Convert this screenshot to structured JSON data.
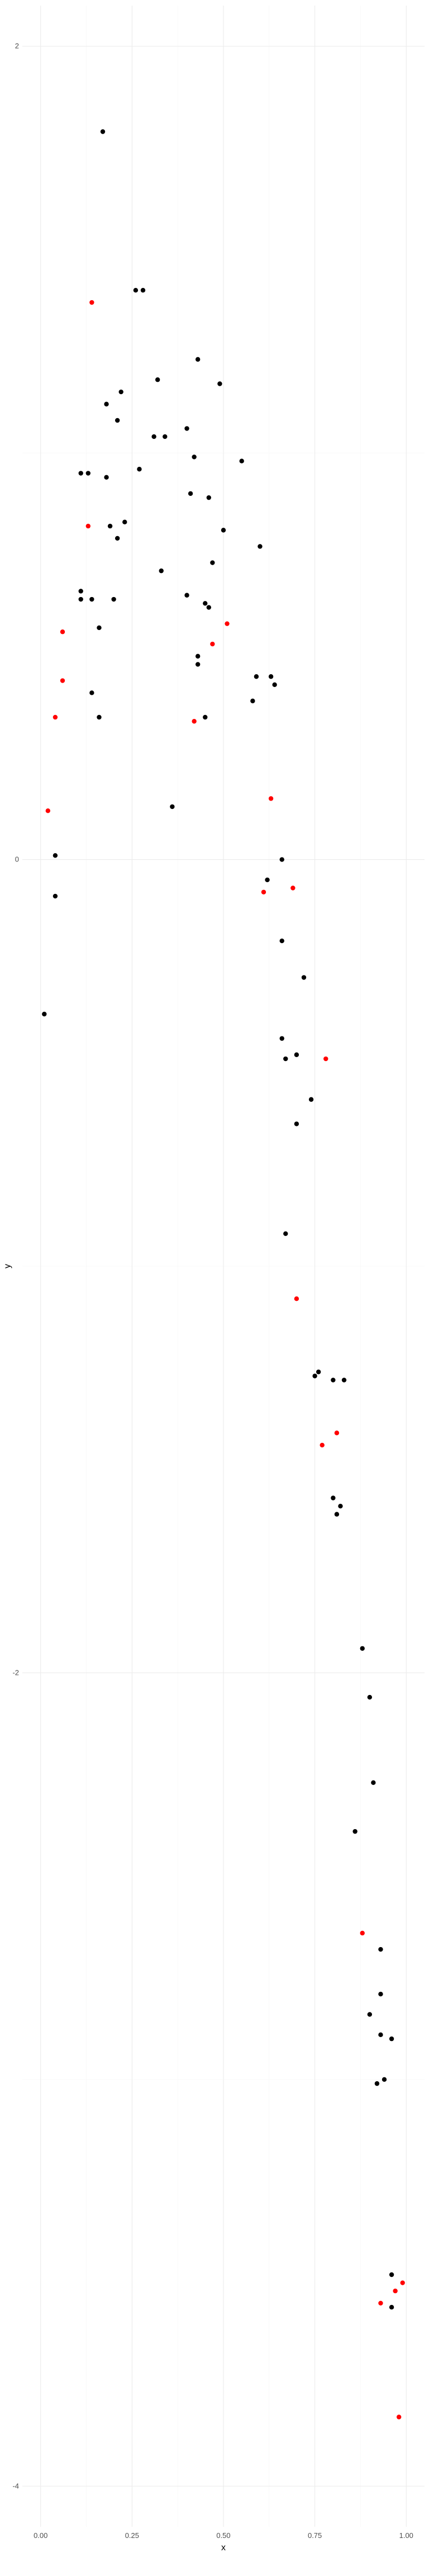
{
  "chart_data": {
    "type": "scatter",
    "xlabel": "x",
    "ylabel": "y",
    "xlim": [
      -0.05,
      1.05
    ],
    "ylim": [
      -4.1,
      2.1
    ],
    "x_ticks": [
      0,
      0.25,
      0.5,
      0.75,
      1
    ],
    "x_tick_labels": [
      "0.00",
      "0.25",
      "0.50",
      "0.75",
      "1.00"
    ],
    "y_ticks": [
      -4,
      -2,
      0,
      2
    ],
    "y_tick_labels": [
      "-4",
      "-2",
      "0",
      "2"
    ],
    "grid": true,
    "colors": {
      "black": "#000000",
      "red": "#ff0000"
    },
    "points": [
      {
        "x": 0.17,
        "y": 1.79,
        "c": "black"
      },
      {
        "x": 0.14,
        "y": 1.37,
        "c": "red"
      },
      {
        "x": 0.26,
        "y": 1.4,
        "c": "black"
      },
      {
        "x": 0.28,
        "y": 1.4,
        "c": "black"
      },
      {
        "x": 0.43,
        "y": 1.23,
        "c": "black"
      },
      {
        "x": 0.32,
        "y": 1.18,
        "c": "black"
      },
      {
        "x": 0.49,
        "y": 1.17,
        "c": "black"
      },
      {
        "x": 0.22,
        "y": 1.15,
        "c": "black"
      },
      {
        "x": 0.18,
        "y": 1.12,
        "c": "black"
      },
      {
        "x": 0.21,
        "y": 1.08,
        "c": "black"
      },
      {
        "x": 0.4,
        "y": 1.06,
        "c": "black"
      },
      {
        "x": 0.31,
        "y": 1.04,
        "c": "black"
      },
      {
        "x": 0.34,
        "y": 1.04,
        "c": "black"
      },
      {
        "x": 0.42,
        "y": 0.99,
        "c": "black"
      },
      {
        "x": 0.55,
        "y": 0.98,
        "c": "black"
      },
      {
        "x": 0.11,
        "y": 0.95,
        "c": "black"
      },
      {
        "x": 0.13,
        "y": 0.95,
        "c": "black"
      },
      {
        "x": 0.27,
        "y": 0.96,
        "c": "black"
      },
      {
        "x": 0.18,
        "y": 0.94,
        "c": "black"
      },
      {
        "x": 0.41,
        "y": 0.9,
        "c": "black"
      },
      {
        "x": 0.46,
        "y": 0.89,
        "c": "black"
      },
      {
        "x": 0.23,
        "y": 0.83,
        "c": "black"
      },
      {
        "x": 0.13,
        "y": 0.82,
        "c": "red"
      },
      {
        "x": 0.19,
        "y": 0.82,
        "c": "black"
      },
      {
        "x": 0.5,
        "y": 0.81,
        "c": "black"
      },
      {
        "x": 0.21,
        "y": 0.79,
        "c": "black"
      },
      {
        "x": 0.6,
        "y": 0.77,
        "c": "black"
      },
      {
        "x": 0.47,
        "y": 0.73,
        "c": "black"
      },
      {
        "x": 0.33,
        "y": 0.71,
        "c": "black"
      },
      {
        "x": 0.11,
        "y": 0.66,
        "c": "black"
      },
      {
        "x": 0.11,
        "y": 0.64,
        "c": "black"
      },
      {
        "x": 0.14,
        "y": 0.64,
        "c": "black"
      },
      {
        "x": 0.2,
        "y": 0.64,
        "c": "black"
      },
      {
        "x": 0.4,
        "y": 0.65,
        "c": "black"
      },
      {
        "x": 0.45,
        "y": 0.63,
        "c": "black"
      },
      {
        "x": 0.46,
        "y": 0.62,
        "c": "black"
      },
      {
        "x": 0.51,
        "y": 0.58,
        "c": "red"
      },
      {
        "x": 0.16,
        "y": 0.57,
        "c": "black"
      },
      {
        "x": 0.06,
        "y": 0.56,
        "c": "red"
      },
      {
        "x": 0.47,
        "y": 0.53,
        "c": "red"
      },
      {
        "x": 0.43,
        "y": 0.5,
        "c": "black"
      },
      {
        "x": 0.43,
        "y": 0.48,
        "c": "black"
      },
      {
        "x": 0.59,
        "y": 0.45,
        "c": "black"
      },
      {
        "x": 0.63,
        "y": 0.45,
        "c": "black"
      },
      {
        "x": 0.06,
        "y": 0.44,
        "c": "red"
      },
      {
        "x": 0.64,
        "y": 0.43,
        "c": "black"
      },
      {
        "x": 0.14,
        "y": 0.41,
        "c": "black"
      },
      {
        "x": 0.58,
        "y": 0.39,
        "c": "black"
      },
      {
        "x": 0.04,
        "y": 0.35,
        "c": "red"
      },
      {
        "x": 0.16,
        "y": 0.35,
        "c": "black"
      },
      {
        "x": 0.42,
        "y": 0.34,
        "c": "red"
      },
      {
        "x": 0.45,
        "y": 0.35,
        "c": "black"
      },
      {
        "x": 0.63,
        "y": 0.15,
        "c": "red"
      },
      {
        "x": 0.36,
        "y": 0.13,
        "c": "black"
      },
      {
        "x": 0.02,
        "y": 0.12,
        "c": "red"
      },
      {
        "x": 0.04,
        "y": 0.01,
        "c": "black"
      },
      {
        "x": 0.66,
        "y": 0.0,
        "c": "black"
      },
      {
        "x": 0.62,
        "y": -0.05,
        "c": "black"
      },
      {
        "x": 0.69,
        "y": -0.07,
        "c": "red"
      },
      {
        "x": 0.61,
        "y": -0.08,
        "c": "red"
      },
      {
        "x": 0.04,
        "y": -0.09,
        "c": "black"
      },
      {
        "x": 0.66,
        "y": -0.2,
        "c": "black"
      },
      {
        "x": 0.72,
        "y": -0.29,
        "c": "black"
      },
      {
        "x": 0.01,
        "y": -0.38,
        "c": "black"
      },
      {
        "x": 0.66,
        "y": -0.44,
        "c": "black"
      },
      {
        "x": 0.7,
        "y": -0.48,
        "c": "black"
      },
      {
        "x": 0.67,
        "y": -0.49,
        "c": "black"
      },
      {
        "x": 0.78,
        "y": -0.49,
        "c": "red"
      },
      {
        "x": 0.74,
        "y": -0.59,
        "c": "black"
      },
      {
        "x": 0.7,
        "y": -0.65,
        "c": "black"
      },
      {
        "x": 0.67,
        "y": -0.92,
        "c": "black"
      },
      {
        "x": 0.7,
        "y": -1.08,
        "c": "red"
      },
      {
        "x": 0.76,
        "y": -1.26,
        "c": "black"
      },
      {
        "x": 0.75,
        "y": -1.27,
        "c": "black"
      },
      {
        "x": 0.8,
        "y": -1.28,
        "c": "black"
      },
      {
        "x": 0.83,
        "y": -1.28,
        "c": "black"
      },
      {
        "x": 0.81,
        "y": -1.41,
        "c": "red"
      },
      {
        "x": 0.77,
        "y": -1.44,
        "c": "red"
      },
      {
        "x": 0.8,
        "y": -1.57,
        "c": "black"
      },
      {
        "x": 0.82,
        "y": -1.59,
        "c": "black"
      },
      {
        "x": 0.81,
        "y": -1.61,
        "c": "black"
      },
      {
        "x": 0.88,
        "y": -1.94,
        "c": "black"
      },
      {
        "x": 0.9,
        "y": -2.06,
        "c": "black"
      },
      {
        "x": 0.91,
        "y": -2.27,
        "c": "black"
      },
      {
        "x": 0.86,
        "y": -2.39,
        "c": "black"
      },
      {
        "x": 0.88,
        "y": -2.64,
        "c": "red"
      },
      {
        "x": 0.93,
        "y": -2.68,
        "c": "black"
      },
      {
        "x": 0.93,
        "y": -2.79,
        "c": "black"
      },
      {
        "x": 0.9,
        "y": -2.84,
        "c": "black"
      },
      {
        "x": 0.93,
        "y": -2.89,
        "c": "black"
      },
      {
        "x": 0.96,
        "y": -2.9,
        "c": "black"
      },
      {
        "x": 0.94,
        "y": -3.0,
        "c": "black"
      },
      {
        "x": 0.92,
        "y": -3.01,
        "c": "black"
      },
      {
        "x": 0.96,
        "y": -3.48,
        "c": "black"
      },
      {
        "x": 0.99,
        "y": -3.5,
        "c": "red"
      },
      {
        "x": 0.97,
        "y": -3.52,
        "c": "red"
      },
      {
        "x": 0.93,
        "y": -3.55,
        "c": "red"
      },
      {
        "x": 0.96,
        "y": -3.56,
        "c": "black"
      },
      {
        "x": 0.98,
        "y": -3.83,
        "c": "red"
      }
    ]
  }
}
